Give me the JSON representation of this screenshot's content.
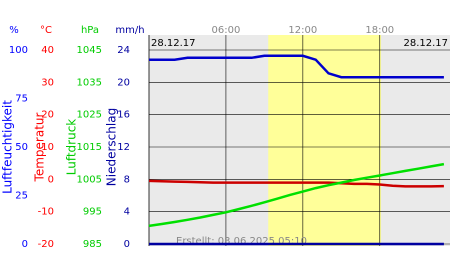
{
  "chart_data": {
    "type": "line",
    "dates": [
      "28.12.17",
      "28.12.17"
    ],
    "footer": "Erstellt: 03.06.2025 05:10",
    "xlim": [
      0,
      23.4
    ],
    "xticks": [
      {
        "value": 6,
        "label": "06:00"
      },
      {
        "value": 12,
        "label": "12:00"
      },
      {
        "value": 18,
        "label": "18:00"
      }
    ],
    "daylight": [
      9.3,
      18.1
    ],
    "grid": true,
    "axes": [
      {
        "title": "Luftfeuchtigkeit",
        "unit": "%",
        "color": "#0000ff",
        "lim": [
          0,
          100
        ],
        "ticks": [
          100,
          75,
          50,
          25,
          0
        ]
      },
      {
        "title": "Temperatur",
        "unit": "°C",
        "color": "#ff0000",
        "lim": [
          -20,
          40
        ],
        "ticks": [
          40,
          30,
          20,
          10,
          0,
          -10,
          -20
        ]
      },
      {
        "title": "Luftdruck",
        "unit": "hPa",
        "color": "#00cc00",
        "lim": [
          985,
          1045
        ],
        "ticks": [
          1045,
          1035,
          1025,
          1015,
          1005,
          995,
          985
        ]
      },
      {
        "title": "Niederschlag",
        "unit": "mm/h",
        "color": "#0000a0",
        "lim": [
          0,
          24
        ],
        "ticks": [
          24,
          20,
          16,
          12,
          8,
          4,
          0
        ]
      }
    ],
    "x": [
      0,
      1,
      2,
      3,
      4,
      5,
      6,
      7,
      8,
      9,
      10,
      11,
      12,
      13,
      14,
      15,
      16,
      17,
      18,
      19,
      20,
      21,
      22,
      23
    ],
    "series": [
      {
        "axis": 0,
        "color": "#0000cc",
        "values": [
          95,
          95,
          95,
          96,
          96,
          96,
          96,
          96,
          96,
          97,
          97,
          97,
          97,
          95,
          88,
          86,
          86,
          86,
          86,
          86,
          86,
          86,
          86,
          86
        ]
      },
      {
        "axis": 1,
        "color": "#cc0000",
        "values": [
          -0.5,
          -0.6,
          -0.7,
          -0.8,
          -0.9,
          -1.0,
          -1.0,
          -1.0,
          -1.0,
          -1.0,
          -1.0,
          -1.0,
          -1.0,
          -1.0,
          -1.0,
          -1.2,
          -1.4,
          -1.4,
          -1.6,
          -2.0,
          -2.2,
          -2.2,
          -2.2,
          -2.1
        ]
      },
      {
        "axis": 2,
        "color": "#00e000",
        "values": [
          990.6,
          991.2,
          991.8,
          992.5,
          993.2,
          994.0,
          994.8,
          995.8,
          996.8,
          997.9,
          999.0,
          1000.2,
          1001.2,
          1002.3,
          1003.2,
          1004.0,
          1004.8,
          1005.5,
          1006.2,
          1006.9,
          1007.6,
          1008.3,
          1009.0,
          1009.7
        ]
      },
      {
        "axis": 3,
        "color": "#0000a0",
        "values": [
          0,
          0,
          0,
          0,
          0,
          0,
          0,
          0,
          0,
          0,
          0,
          0,
          0,
          0,
          0,
          0,
          0,
          0,
          0,
          0,
          0,
          0,
          0,
          0
        ]
      }
    ]
  }
}
